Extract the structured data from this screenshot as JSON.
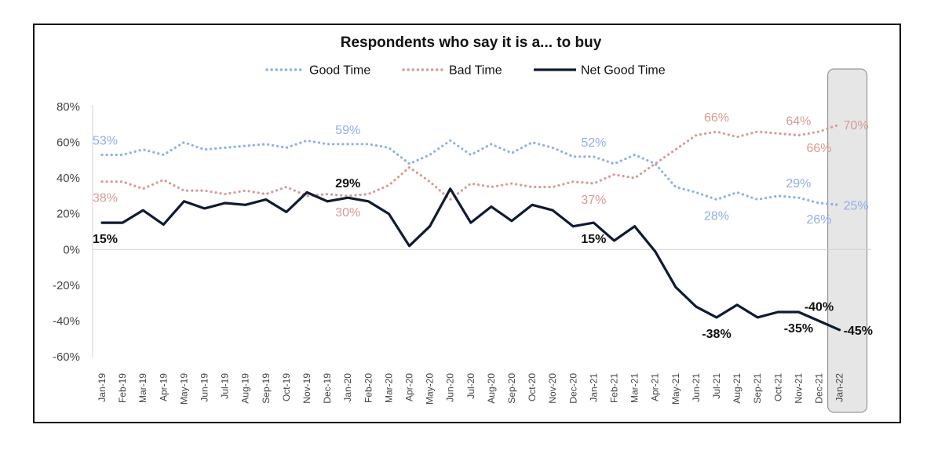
{
  "chart_data": {
    "type": "line",
    "title": "Respondents who say it is a... to buy",
    "legend_position": "top",
    "categories": [
      "Jan-19",
      "Feb-19",
      "Mar-19",
      "Apr-19",
      "May-19",
      "Jun-19",
      "Jul-19",
      "Aug-19",
      "Sep-19",
      "Oct-19",
      "Nov-19",
      "Dec-19",
      "Jan-20",
      "Feb-20",
      "Mar-20",
      "Apr-20",
      "May-20",
      "Jun-20",
      "Jul-20",
      "Aug-20",
      "Sep-20",
      "Oct-20",
      "Nov-20",
      "Dec-20",
      "Jan-21",
      "Feb-21",
      "Mar-21",
      "Apr-21",
      "May-21",
      "Jun-21",
      "Jul-21",
      "Aug-21",
      "Sep-21",
      "Oct-21",
      "Nov-21",
      "Dec-21",
      "Jan-22"
    ],
    "y_ticks": [
      "80%",
      "60%",
      "40%",
      "20%",
      "0%",
      "-20%",
      "-40%",
      "-60%"
    ],
    "ylim": [
      -60,
      80
    ],
    "grid": false,
    "highlight_category": "Jan-22",
    "series": [
      {
        "name": "Good Time",
        "style": "dotted",
        "color": "#8FAEEA",
        "values": [
          53,
          53,
          56,
          53,
          60,
          56,
          57,
          58,
          59,
          57,
          61,
          59,
          59,
          59,
          57,
          48,
          53,
          61,
          53,
          59,
          54,
          60,
          57,
          52,
          52,
          48,
          53,
          48,
          35,
          32,
          28,
          32,
          28,
          30,
          29,
          26,
          25
        ],
        "labels": [
          {
            "index": 0,
            "text": "53%",
            "pos": "above"
          },
          {
            "index": 12,
            "text": "59%",
            "pos": "above"
          },
          {
            "index": 24,
            "text": "52%",
            "pos": "above"
          },
          {
            "index": 30,
            "text": "28%",
            "pos": "below"
          },
          {
            "index": 34,
            "text": "29%",
            "pos": "above"
          },
          {
            "index": 35,
            "text": "26%",
            "pos": "below"
          },
          {
            "index": 36,
            "text": "25%",
            "pos": "right"
          }
        ]
      },
      {
        "name": "Bad Time",
        "style": "dotted",
        "color": "#D99A94",
        "values": [
          38,
          38,
          34,
          39,
          33,
          33,
          31,
          33,
          31,
          35,
          30,
          31,
          30,
          31,
          36,
          46,
          38,
          28,
          37,
          35,
          37,
          35,
          35,
          38,
          37,
          42,
          40,
          48,
          56,
          64,
          66,
          63,
          66,
          65,
          64,
          66,
          70
        ],
        "labels": [
          {
            "index": 0,
            "text": "38%",
            "pos": "below"
          },
          {
            "index": 12,
            "text": "30%",
            "pos": "below"
          },
          {
            "index": 24,
            "text": "37%",
            "pos": "below"
          },
          {
            "index": 30,
            "text": "66%",
            "pos": "above"
          },
          {
            "index": 34,
            "text": "64%",
            "pos": "above"
          },
          {
            "index": 35,
            "text": "66%",
            "pos": "below"
          },
          {
            "index": 36,
            "text": "70%",
            "pos": "right"
          }
        ]
      },
      {
        "name": "Net Good Time",
        "style": "solid",
        "color": "#0F1A33",
        "values": [
          15,
          15,
          22,
          14,
          27,
          23,
          26,
          25,
          28,
          21,
          32,
          27,
          29,
          27,
          20,
          2,
          13,
          34,
          15,
          24,
          16,
          25,
          22,
          13,
          15,
          5,
          13,
          -1,
          -21,
          -32,
          -38,
          -31,
          -38,
          -35,
          -35,
          -40,
          -45
        ],
        "labels": [
          {
            "index": 0,
            "text": "15%",
            "pos": "below"
          },
          {
            "index": 12,
            "text": "29%",
            "pos": "above"
          },
          {
            "index": 24,
            "text": "15%",
            "pos": "below"
          },
          {
            "index": 30,
            "text": "-38%",
            "pos": "below"
          },
          {
            "index": 34,
            "text": "-35%",
            "pos": "below"
          },
          {
            "index": 35,
            "text": "-40%",
            "pos": "above"
          },
          {
            "index": 36,
            "text": "-45%",
            "pos": "right"
          }
        ]
      }
    ]
  }
}
